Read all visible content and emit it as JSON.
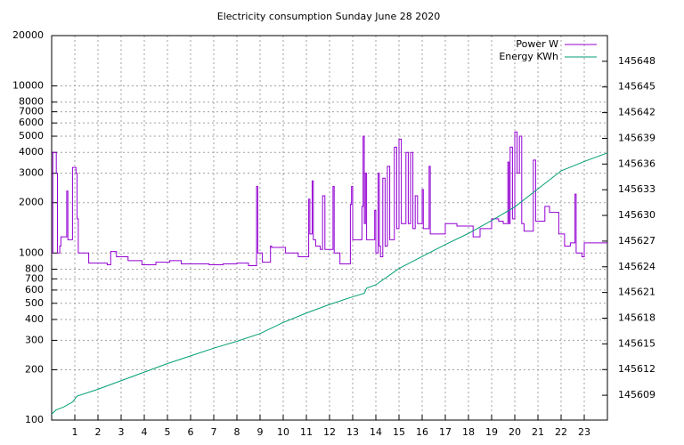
{
  "chart_data": {
    "type": "line",
    "title": "Electricity consumption Sunday June 28 2020",
    "xlim": [
      0,
      24
    ],
    "xticks": [
      1,
      2,
      3,
      4,
      5,
      6,
      7,
      8,
      9,
      10,
      11,
      12,
      13,
      14,
      15,
      16,
      17,
      18,
      19,
      20,
      21,
      22,
      23
    ],
    "ylim": [
      100,
      20000
    ],
    "ylog": true,
    "yticks": [
      100,
      200,
      300,
      400,
      500,
      600,
      700,
      800,
      1000,
      2000,
      3000,
      4000,
      5000,
      6000,
      7000,
      8000,
      10000,
      20000
    ],
    "y2lim": [
      145606.1,
      145651
    ],
    "y2ticks": [
      145609,
      145612,
      145615,
      145618,
      145621,
      145624,
      145627,
      145630,
      145633,
      145636,
      145639,
      145642,
      145645,
      145648
    ],
    "grid": true,
    "legend": "top-right",
    "series": [
      {
        "name": "Power W",
        "color": "#9400d3",
        "style": "steps",
        "x": [
          0,
          0.05,
          0.2,
          0.25,
          0.35,
          0.4,
          0.65,
          0.7,
          0.9,
          1.05,
          1.1,
          1.15,
          1.6,
          2.4,
          2.55,
          2.8,
          3.3,
          3.9,
          4.5,
          5.1,
          5.6,
          6.4,
          6.8,
          7.4,
          8.0,
          8.5,
          8.85,
          8.9,
          9.1,
          9.45,
          9.5,
          10.1,
          10.65,
          11.1,
          11.15,
          11.25,
          11.3,
          11.4,
          11.6,
          11.7,
          11.8,
          12.15,
          12.2,
          12.45,
          12.9,
          12.95,
          13.0,
          13.4,
          13.45,
          13.5,
          13.55,
          13.6,
          13.95,
          14.0,
          14.1,
          14.15,
          14.2,
          14.3,
          14.4,
          14.5,
          14.6,
          14.8,
          14.9,
          15.0,
          15.1,
          15.3,
          15.4,
          15.5,
          15.6,
          15.7,
          15.8,
          16.0,
          16.05,
          16.3,
          16.35,
          17.0,
          17.5,
          18.2,
          18.5,
          19.0,
          19.3,
          19.5,
          19.7,
          19.75,
          19.8,
          19.9,
          20.0,
          20.1,
          20.2,
          20.3,
          20.4,
          20.8,
          20.9,
          21.3,
          21.5,
          21.8,
          21.9,
          22.15,
          22.4,
          22.6,
          22.65,
          22.9,
          23.0,
          23.8,
          24
        ],
        "values": [
          1000,
          4000,
          3000,
          1000,
          1100,
          1250,
          2350,
          1200,
          3250,
          3000,
          1600,
          1000,
          870,
          850,
          1020,
          950,
          900,
          850,
          880,
          900,
          860,
          860,
          850,
          860,
          870,
          840,
          2500,
          1000,
          880,
          1100,
          1080,
          1000,
          950,
          2100,
          1300,
          2700,
          1200,
          1100,
          1050,
          2200,
          1050,
          2500,
          1000,
          860,
          1950,
          2500,
          1200,
          1900,
          5000,
          1500,
          3000,
          1200,
          1800,
          1000,
          3000,
          1100,
          950,
          2800,
          1100,
          3300,
          1200,
          4300,
          1400,
          4800,
          1500,
          4000,
          1500,
          4000,
          1400,
          2200,
          1500,
          2400,
          1400,
          3300,
          1300,
          1500,
          1450,
          1250,
          1400,
          1600,
          1550,
          1500,
          3500,
          1500,
          4300,
          1600,
          5300,
          3000,
          5000,
          1500,
          1350,
          3600,
          1550,
          1900,
          1750,
          1750,
          1300,
          1100,
          1150,
          2250,
          1000,
          950,
          1150,
          1150,
          1150
        ]
      },
      {
        "name": "Energy KWh",
        "color": "#009e73",
        "axis": "y2",
        "x": [
          0,
          0.2,
          0.5,
          0.9,
          1.1,
          2,
          3,
          4,
          5,
          6,
          7,
          8,
          9,
          10,
          11,
          12,
          13,
          13.5,
          13.6,
          14,
          15,
          16,
          17,
          18,
          19,
          20,
          21,
          22,
          23,
          24
        ],
        "values": [
          145606.8,
          145607.3,
          145607.6,
          145608.2,
          145608.9,
          145609.7,
          145610.7,
          145611.7,
          145612.7,
          145613.6,
          145614.5,
          145615.3,
          145616.2,
          145617.5,
          145618.6,
          145619.6,
          145620.5,
          145620.9,
          145621.5,
          145621.9,
          145623.8,
          145625.2,
          145626.6,
          145627.9,
          145629.4,
          145631,
          145633.1,
          145635.2,
          145636.3,
          145637.3
        ]
      }
    ]
  }
}
